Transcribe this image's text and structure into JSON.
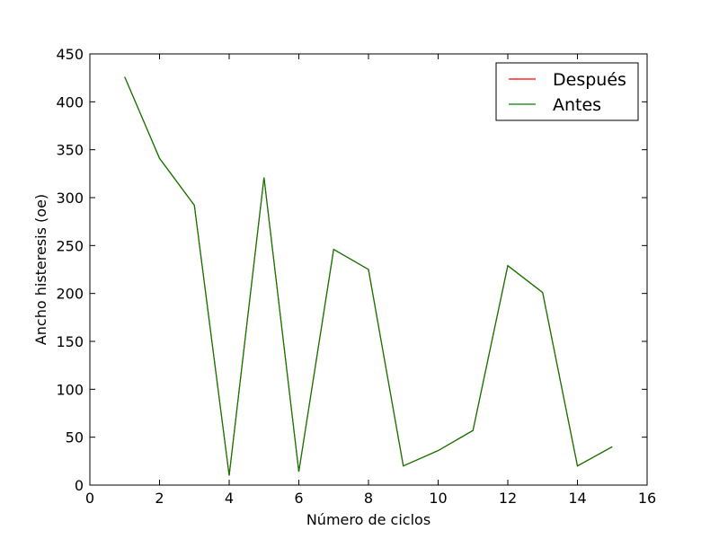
{
  "chart_data": {
    "type": "line",
    "xlabel": "Número de ciclos",
    "ylabel": "Ancho histeresis (oe)",
    "xlim": [
      0,
      16
    ],
    "ylim": [
      0,
      450
    ],
    "x_ticks": [
      "0",
      "2",
      "4",
      "6",
      "8",
      "10",
      "12",
      "14",
      "16"
    ],
    "y_ticks": [
      "0",
      "50",
      "100",
      "150",
      "200",
      "250",
      "300",
      "350",
      "400",
      "450"
    ],
    "grid": false,
    "legend_position": "top-right",
    "x": [
      1,
      2,
      3,
      4,
      5,
      6,
      7,
      8,
      9,
      10,
      11,
      12,
      13,
      14,
      15
    ],
    "series": [
      {
        "name": "Después",
        "color": "#ff0000",
        "values": [
          426,
          341,
          292,
          10,
          321,
          14,
          246,
          225,
          20,
          36,
          57,
          229,
          201,
          20,
          40
        ]
      },
      {
        "name": "Antes",
        "color": "#008000",
        "values": [
          426,
          341,
          292,
          10,
          321,
          14,
          246,
          225,
          20,
          36,
          57,
          229,
          201,
          20,
          40
        ]
      }
    ]
  }
}
